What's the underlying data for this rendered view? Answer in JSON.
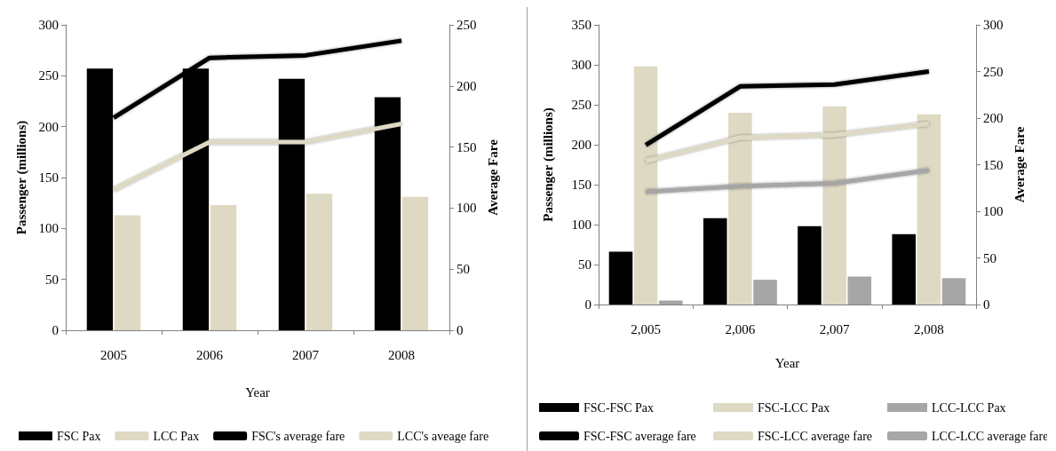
{
  "chart_data": [
    {
      "type": "bar",
      "categories": [
        "2005",
        "2006",
        "2007",
        "2008"
      ],
      "xlabel": "Year",
      "ylabel": "Passenger (millions)",
      "y2label": "Average Fare",
      "ylim": [
        0,
        300
      ],
      "yticks": [
        0,
        50,
        100,
        150,
        200,
        250,
        300
      ],
      "y2lim": [
        0,
        250
      ],
      "y2ticks": [
        0,
        50,
        100,
        150,
        200,
        250
      ],
      "grid": false,
      "legend": "bottom",
      "marker": "none",
      "series": [
        {
          "name": "FSC Pax",
          "color": "#000000",
          "values": [
            257,
            257,
            247,
            229
          ]
        },
        {
          "name": "LCC Pax",
          "color": "#ddd9c3",
          "values": [
            113,
            123,
            134,
            131
          ]
        },
        {
          "name": "FSC's average fare",
          "type": "line",
          "axis": "y2",
          "color": "#000000",
          "values": [
            174,
            223,
            225,
            237
          ]
        },
        {
          "name": "LCC's aveage fare",
          "type": "line",
          "axis": "y2",
          "color": "#ddd9c3",
          "values": [
            115,
            154,
            154,
            169
          ]
        }
      ]
    },
    {
      "type": "bar",
      "categories": [
        "2,005",
        "2,006",
        "2,007",
        "2,008"
      ],
      "xlabel": "Year",
      "ylabel": "Passenger (millions)",
      "y2label": "Average Fare",
      "ylim": [
        0,
        350
      ],
      "yticks": [
        0,
        50,
        100,
        150,
        200,
        250,
        300,
        350
      ],
      "y2lim": [
        0,
        300
      ],
      "y2ticks": [
        0,
        50,
        100,
        150,
        200,
        250,
        300
      ],
      "grid": false,
      "legend": "bottom",
      "marker": "none",
      "series": [
        {
          "name": "FSC-FSC Pax",
          "color": "#000000",
          "values": [
            66,
            108,
            98,
            88
          ]
        },
        {
          "name": "FSC-LCC Pax",
          "color": "#ddd9c3",
          "values": [
            298,
            240,
            248,
            238
          ]
        },
        {
          "name": "LCC-LCC Pax",
          "color": "#a6a6a6",
          "values": [
            5,
            31,
            35,
            33
          ]
        },
        {
          "name": "FSC-FSC average fare",
          "type": "line",
          "axis": "y2",
          "color": "#000000",
          "values": [
            171,
            234,
            236,
            250
          ]
        },
        {
          "name": "FSC-LCC average fare",
          "type": "line",
          "axis": "y2",
          "color": "#ddd9c3",
          "values": [
            154,
            179,
            182,
            194
          ]
        },
        {
          "name": "LCC-LCC average fare",
          "type": "line",
          "axis": "y2",
          "color": "#a6a6a6",
          "values": [
            121,
            127,
            130,
            144
          ]
        }
      ]
    }
  ]
}
